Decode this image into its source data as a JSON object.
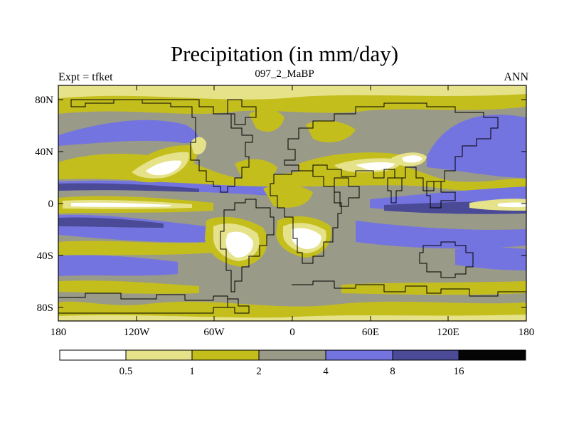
{
  "title": "Precipitation (in mm/day)",
  "subtitle_left": "Expt = tfket",
  "subtitle_center": "097_2_MaBP",
  "subtitle_right": "ANN",
  "axes": {
    "x_ticks": [
      "180",
      "120W",
      "60W",
      "0",
      "60E",
      "120E",
      "180"
    ],
    "y_ticks": [
      "80N",
      "40N",
      "0",
      "40S",
      "80S"
    ]
  },
  "colorbar": {
    "colors": [
      "#ffffff",
      "#e6e28a",
      "#c4be1d",
      "#9a9a88",
      "#7474e0",
      "#4a4a96",
      "#050505"
    ],
    "labels": [
      "0.5",
      "1",
      "2",
      "4",
      "8",
      "16"
    ]
  }
}
